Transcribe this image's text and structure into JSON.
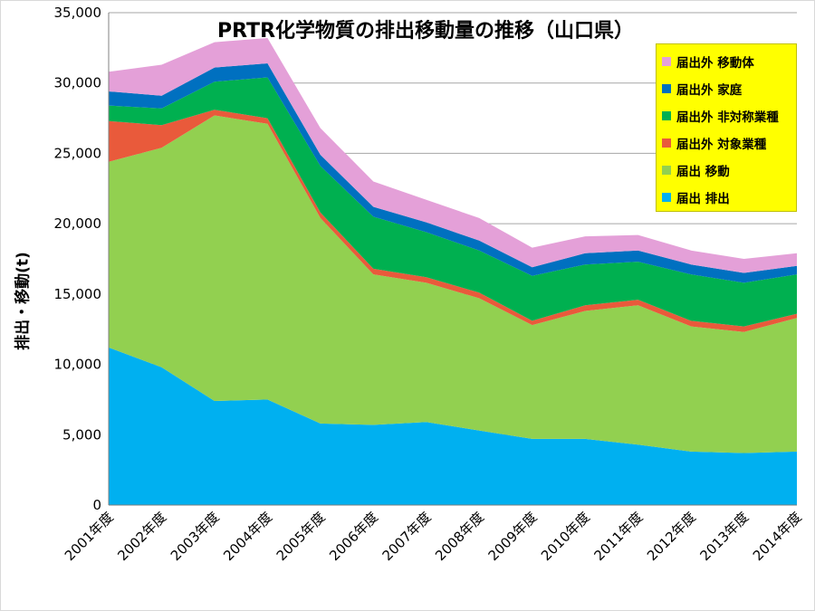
{
  "chart_data": {
    "type": "area",
    "stacked": true,
    "title": "PRTR化学物質の排出移動量の推移（山口県）",
    "ylabel": "排出・移動(t)",
    "xlabel": "",
    "ylim": [
      0,
      35000
    ],
    "yticks": [
      "0",
      "5,000",
      "10,000",
      "15,000",
      "20,000",
      "25,000",
      "30,000",
      "35,000"
    ],
    "grid": true,
    "legend_position": "top-right",
    "categories": [
      "2001年度",
      "2002年度",
      "2003年度",
      "2004年度",
      "2005年度",
      "2006年度",
      "2007年度",
      "2008年度",
      "2009年度",
      "2010年度",
      "2011年度",
      "2012年度",
      "2013年度",
      "2014年度"
    ],
    "series": [
      {
        "name": "届出 排出",
        "color": "#00b0f0",
        "values": [
          11200,
          9800,
          7400,
          7500,
          5800,
          5700,
          5900,
          5300,
          4700,
          4700,
          4300,
          3800,
          3700,
          3800
        ]
      },
      {
        "name": "届出 移動",
        "color": "#92d050",
        "values": [
          13200,
          15600,
          20300,
          19600,
          14600,
          10700,
          9900,
          9400,
          8100,
          9100,
          9900,
          8900,
          8600,
          9500
        ]
      },
      {
        "name": "届出外 対象業種",
        "color": "#e95a3b",
        "values": [
          2900,
          1600,
          400,
          400,
          400,
          400,
          400,
          400,
          300,
          400,
          400,
          400,
          400,
          300
        ]
      },
      {
        "name": "届出外 非対称業種",
        "color": "#00b050",
        "values": [
          1100,
          1200,
          2000,
          2900,
          3300,
          3700,
          3200,
          3000,
          3200,
          2900,
          2700,
          3300,
          3100,
          2800
        ]
      },
      {
        "name": "届出外 家庭",
        "color": "#0070c0",
        "values": [
          1000,
          900,
          1000,
          1000,
          800,
          700,
          700,
          700,
          600,
          800,
          800,
          700,
          700,
          600
        ]
      },
      {
        "name": "届出外 移動体",
        "color": "#e4a0d8",
        "values": [
          1400,
          2200,
          1800,
          1800,
          1900,
          1800,
          1600,
          1600,
          1400,
          1200,
          1100,
          1000,
          1000,
          900
        ]
      }
    ]
  }
}
